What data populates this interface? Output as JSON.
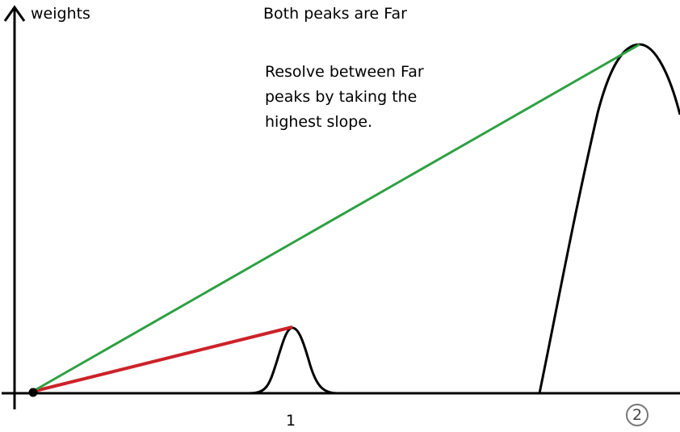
{
  "y_axis": {
    "label": "weights"
  },
  "title": "Both peaks are Far",
  "annotation": {
    "lines": [
      "Resolve between Far",
      "peaks by taking the",
      "highest slope."
    ]
  },
  "peaks": [
    {
      "label": "1"
    },
    {
      "label": "2",
      "marker": "circled"
    }
  ],
  "colors": {
    "axis": "#000000",
    "curve": "#000000",
    "slope_to_peak1": "#cc2229",
    "slope_to_peak2": "#2ea043",
    "peak2_circle": "#777777"
  }
}
